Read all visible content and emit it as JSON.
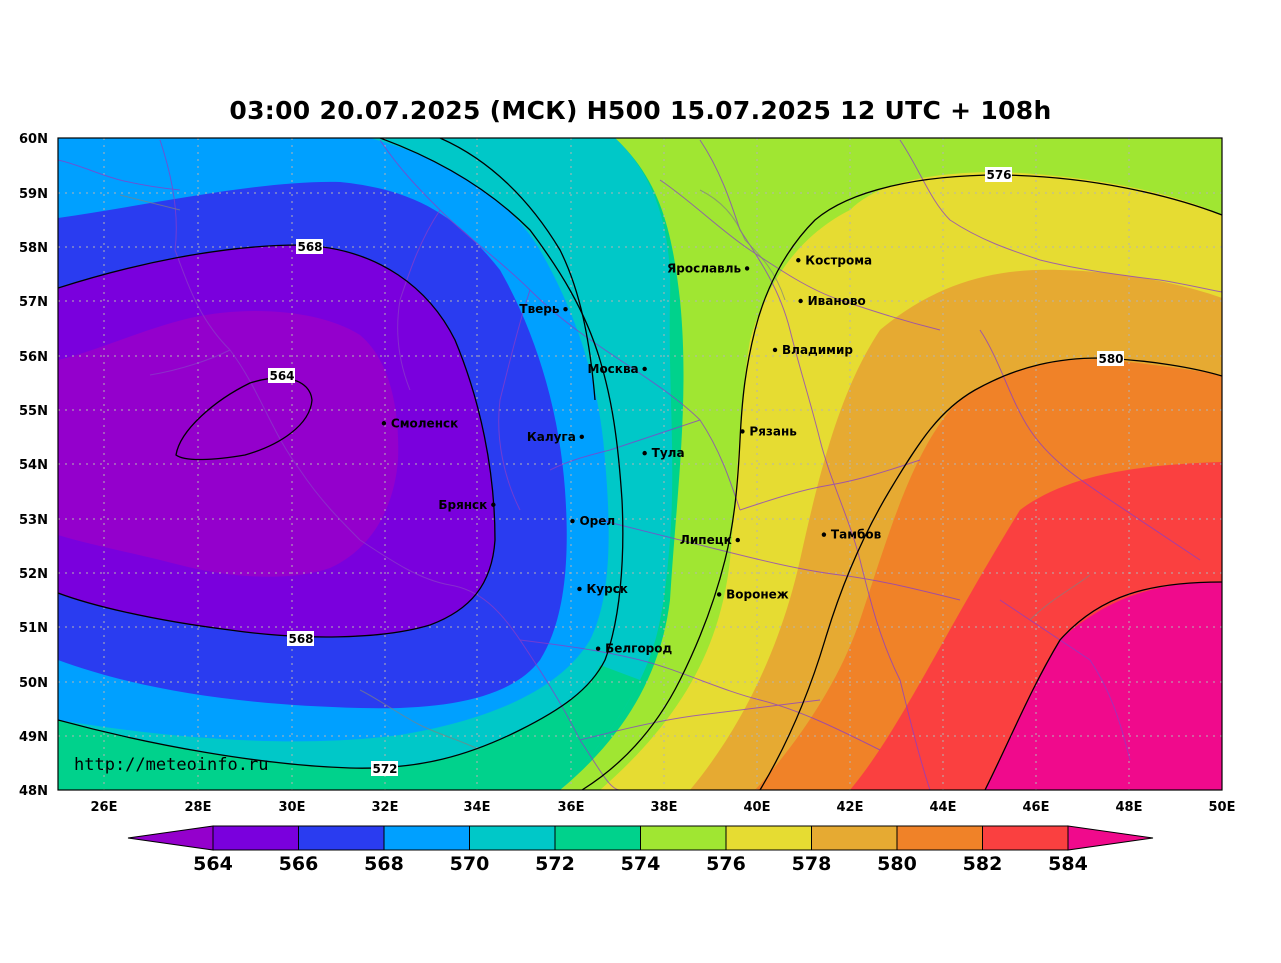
{
  "title": "03:00 20.07.2025 (МСК) H500  15.07.2025 12 UTC + 108h",
  "watermark": "http://meteoinfo.ru",
  "lat_labels": [
    "60N",
    "59N",
    "58N",
    "57N",
    "56N",
    "55N",
    "54N",
    "53N",
    "52N",
    "51N",
    "50N",
    "49N",
    "48N"
  ],
  "lon_labels": [
    "26E",
    "28E",
    "30E",
    "32E",
    "34E",
    "36E",
    "38E",
    "40E",
    "42E",
    "44E",
    "46E",
    "48E",
    "50E"
  ],
  "map": {
    "lon_range": [
      25,
      50
    ],
    "lat_range": [
      48,
      60
    ],
    "grid": true
  },
  "cities": [
    {
      "name": "Ярославль",
      "lon": 39.8,
      "lat": 57.6
    },
    {
      "name": "Кострома",
      "lon": 40.9,
      "lat": 57.75
    },
    {
      "name": "Иваново",
      "lon": 40.95,
      "lat": 57.0
    },
    {
      "name": "Тверь",
      "lon": 35.9,
      "lat": 56.85
    },
    {
      "name": "Владимир",
      "lon": 40.4,
      "lat": 56.1
    },
    {
      "name": "Москва",
      "lon": 37.6,
      "lat": 55.75
    },
    {
      "name": "Смоленск",
      "lon": 32.0,
      "lat": 54.75
    },
    {
      "name": "Рязань",
      "lon": 39.7,
      "lat": 54.6
    },
    {
      "name": "Калуга",
      "lon": 36.25,
      "lat": 54.5
    },
    {
      "name": "Тула",
      "lon": 37.6,
      "lat": 54.2
    },
    {
      "name": "Брянск",
      "lon": 34.35,
      "lat": 53.25
    },
    {
      "name": "Орел",
      "lon": 36.05,
      "lat": 52.95
    },
    {
      "name": "Тамбов",
      "lon": 41.45,
      "lat": 52.7
    },
    {
      "name": "Липецк",
      "lon": 39.6,
      "lat": 52.6
    },
    {
      "name": "Курск",
      "lon": 36.2,
      "lat": 51.7
    },
    {
      "name": "Воронеж",
      "lon": 39.2,
      "lat": 51.6
    },
    {
      "name": "Белгород",
      "lon": 36.6,
      "lat": 50.6
    }
  ],
  "contour_labels": [
    "568",
    "564",
    "568",
    "572",
    "576",
    "580"
  ],
  "colorbar": {
    "labels": [
      "564",
      "566",
      "568",
      "570",
      "572",
      "574",
      "576",
      "578",
      "580",
      "582",
      "584"
    ],
    "colors": [
      "#9400cc",
      "#7a00dd",
      "#2a3cf0",
      "#00a0ff",
      "#00c8c8",
      "#00d28c",
      "#a0e632",
      "#e6dc32",
      "#e6aa32",
      "#f08228",
      "#fa4040",
      "#f00a8c"
    ]
  },
  "field_colors": {
    "c564": "#9400cc",
    "c566": "#7a00dd",
    "c568": "#2a3cf0",
    "c570": "#00a0ff",
    "c572": "#00c8c8",
    "c574": "#00d28c",
    "c576": "#a0e632",
    "c578": "#e6dc32",
    "c580": "#e6aa32",
    "c582": "#f08228",
    "c584": "#fa4040",
    "c586": "#f00a8c"
  }
}
